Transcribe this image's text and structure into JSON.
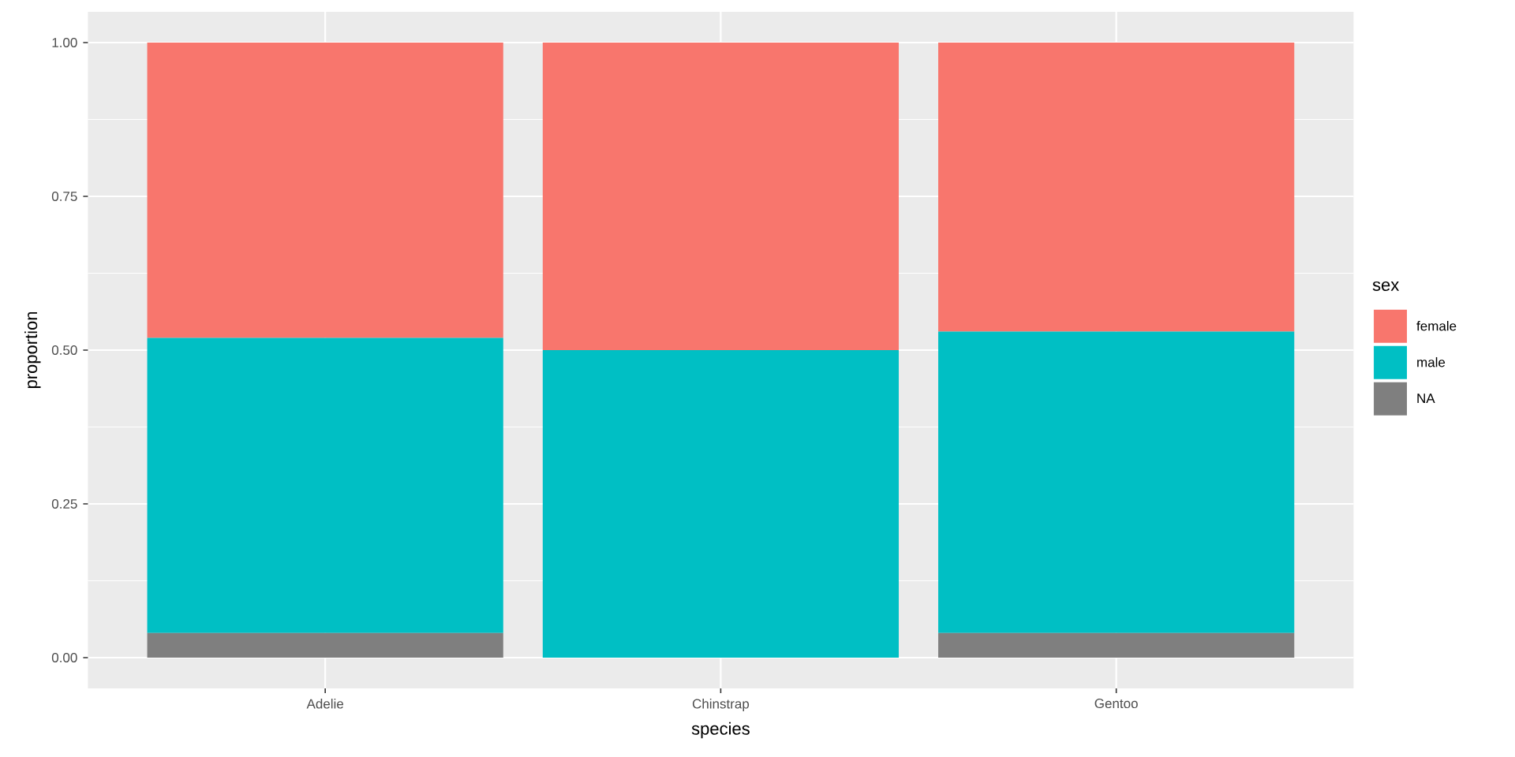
{
  "chart_data": {
    "type": "bar",
    "stacked": true,
    "xlabel": "species",
    "ylabel": "proportion",
    "legend_title": "sex",
    "legend": "right",
    "grid": true,
    "categories": [
      "Adelie",
      "Chinstrap",
      "Gentoo"
    ],
    "ylim": [
      -0.05,
      1.05
    ],
    "yticks": [
      {
        "value": 0,
        "label": "0.00"
      },
      {
        "value": 0.25,
        "label": "0.25"
      },
      {
        "value": 0.5,
        "label": "0.50"
      },
      {
        "value": 0.75,
        "label": "0.75"
      },
      {
        "value": 1,
        "label": "1.00"
      }
    ],
    "series": [
      {
        "name": "NA",
        "color": "#7f7f7f",
        "values": [
          0.04,
          0,
          0.04
        ]
      },
      {
        "name": "male",
        "color": "#00bfc4",
        "values": [
          0.48,
          0.5,
          0.49
        ]
      },
      {
        "name": "female",
        "color": "#f8766d",
        "values": [
          0.48,
          0.5,
          0.47
        ]
      }
    ]
  }
}
